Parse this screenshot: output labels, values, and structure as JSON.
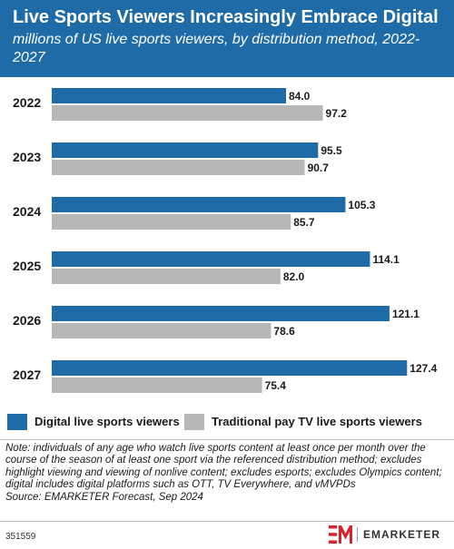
{
  "header": {
    "title": "Live Sports Viewers Increasingly Embrace Digital",
    "subtitle": "millions of US live sports viewers, by distribution method, 2022-2027"
  },
  "colors": {
    "header_bg": "#1f6ba8",
    "digital": "#1f6ba8",
    "traditional": "#b7b7b7",
    "brand_red": "#d8232a"
  },
  "chart_data": {
    "type": "bar",
    "orientation": "horizontal",
    "categories": [
      "2022",
      "2023",
      "2024",
      "2025",
      "2026",
      "2027"
    ],
    "series": [
      {
        "name": "Digital live sports viewers",
        "color": "#1f6ba8",
        "values": [
          84.0,
          95.5,
          105.3,
          114.1,
          121.1,
          127.4
        ]
      },
      {
        "name": "Traditional pay TV live sports viewers",
        "color": "#b7b7b7",
        "values": [
          97.2,
          90.7,
          85.7,
          82.0,
          78.6,
          75.4
        ]
      }
    ],
    "value_labels": [
      [
        "84.0",
        "95.5",
        "105.3",
        "114.1",
        "121.1",
        "127.4"
      ],
      [
        "97.2",
        "90.7",
        "85.7",
        "82.0",
        "78.6",
        "75.4"
      ]
    ],
    "xlim": [
      0,
      140
    ],
    "grid": false,
    "legend_position": "bottom"
  },
  "legend": {
    "digital": "Digital live sports viewers",
    "traditional": "Traditional pay TV live sports viewers"
  },
  "notes": {
    "note": "Note: individuals of any age who watch live sports content at least once per month over the course of the season of at least one sport via the referenced distribution method; excludes highlight viewing and viewing of nonlive content; excludes esports; excludes Olympics content; digital includes digital platforms such as OTT, TV Everywhere, and vMVPDs",
    "source": "Source: EMARKETER Forecast, Sep 2024"
  },
  "footer": {
    "chart_id": "351559",
    "brand": "EMARKETER"
  }
}
